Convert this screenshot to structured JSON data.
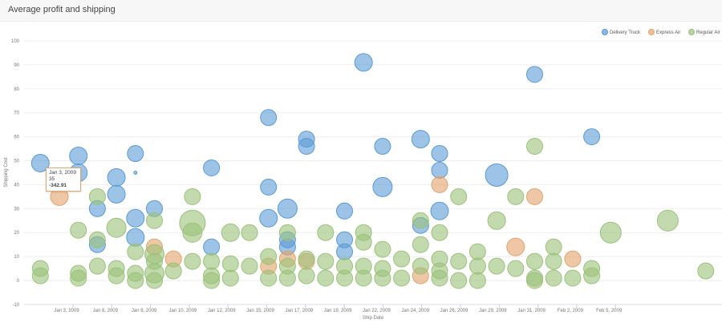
{
  "header": {
    "title": "Average profit and shipping"
  },
  "chart_data": {
    "type": "scatter",
    "subtype": "bubble",
    "title": "",
    "xlabel": "Ship Date",
    "ylabel": "Shipping Cost",
    "ylim": [
      -10,
      100
    ],
    "yticks": [
      -10,
      0,
      10,
      20,
      30,
      40,
      50,
      60,
      70,
      80,
      90,
      100
    ],
    "xticks": [
      "Jan 3, 2009",
      "Jan 6, 2009",
      "Jan 8, 2009",
      "Jan 10, 2009",
      "Jan 12, 2009",
      "Jan 15, 2009",
      "Jan 17, 2009",
      "Jan 19, 2009",
      "Jan 22, 2009",
      "Jan 24, 2009",
      "Jan 26, 2009",
      "Jan 29, 2009",
      "Jan 31, 2009",
      "Feb 2, 2009",
      "Feb 5, 2009"
    ],
    "grid": true,
    "legend_position": "top-right",
    "series": [
      {
        "name": "Delivery Truck",
        "color": "#5b9bd5",
        "points": [
          [
            "Jan 2",
            49,
            11
          ],
          [
            "Jan 4",
            52,
            11
          ],
          [
            "Jan 4",
            45,
            11
          ],
          [
            "Jan 5",
            30,
            10
          ],
          [
            "Jan 5",
            15,
            10
          ],
          [
            "Jan 6",
            43,
            11
          ],
          [
            "Jan 6",
            36,
            11
          ],
          [
            "Jan 7",
            53,
            10
          ],
          [
            "Jan 7",
            45,
            2
          ],
          [
            "Jan 7",
            26,
            11
          ],
          [
            "Jan 7",
            18,
            11
          ],
          [
            "Jan 8",
            30,
            10
          ],
          [
            "Jan 11",
            47,
            10
          ],
          [
            "Jan 11",
            14,
            10
          ],
          [
            "Jan 14",
            68,
            10
          ],
          [
            "Jan 14",
            39,
            10
          ],
          [
            "Jan 14",
            26,
            11
          ],
          [
            "Jan 15",
            30,
            12
          ],
          [
            "Jan 15",
            17,
            10
          ],
          [
            "Jan 15",
            14,
            10
          ],
          [
            "Jan 16",
            59,
            10
          ],
          [
            "Jan 16",
            56,
            10
          ],
          [
            "Jan 18",
            29,
            10
          ],
          [
            "Jan 18",
            17,
            10
          ],
          [
            "Jan 18",
            12,
            10
          ],
          [
            "Jan 19",
            91,
            11
          ],
          [
            "Jan 20",
            56,
            10
          ],
          [
            "Jan 20",
            39,
            12
          ],
          [
            "Jan 22",
            59,
            11
          ],
          [
            "Jan 22",
            23,
            10
          ],
          [
            "Jan 23",
            53,
            10
          ],
          [
            "Jan 23",
            46,
            10
          ],
          [
            "Jan 23",
            29,
            11
          ],
          [
            "Jan 26",
            44,
            14
          ],
          [
            "Jan 28",
            86,
            10
          ],
          [
            "Jan 31",
            60,
            10
          ]
        ]
      },
      {
        "name": "Express Air",
        "color": "#e3a46b",
        "points": [
          [
            "Jan 3",
            35,
            11
          ],
          [
            "Jan 8",
            14,
            10
          ],
          [
            "Jan 9",
            9,
            10
          ],
          [
            "Jan 14",
            6,
            10
          ],
          [
            "Jan 15",
            9,
            10
          ],
          [
            "Jan 16",
            8,
            10
          ],
          [
            "Jan 22",
            2,
            10
          ],
          [
            "Jan 23",
            40,
            10
          ],
          [
            "Jan 27",
            14,
            11
          ],
          [
            "Jan 28",
            35,
            10
          ],
          [
            "Jan 30",
            9,
            10
          ]
        ]
      },
      {
        "name": "Regular Air",
        "color": "#9bc27a",
        "points": [
          [
            "Jan 2",
            5,
            10
          ],
          [
            "Jan 2",
            2,
            10
          ],
          [
            "Jan 4",
            21,
            10
          ],
          [
            "Jan 4",
            3,
            10
          ],
          [
            "Jan 4",
            1,
            10
          ],
          [
            "Jan 5",
            35,
            10
          ],
          [
            "Jan 5",
            17,
            10
          ],
          [
            "Jan 5",
            6,
            10
          ],
          [
            "Jan 6",
            22,
            12
          ],
          [
            "Jan 6",
            5,
            10
          ],
          [
            "Jan 6",
            2,
            10
          ],
          [
            "Jan 7",
            12,
            10
          ],
          [
            "Jan 7",
            3,
            10
          ],
          [
            "Jan 7",
            0,
            10
          ],
          [
            "Jan 8",
            25,
            10
          ],
          [
            "Jan 8",
            11,
            12
          ],
          [
            "Jan 8",
            8,
            10
          ],
          [
            "Jan 8",
            3,
            12
          ],
          [
            "Jan 8",
            0,
            10
          ],
          [
            "Jan 9",
            4,
            10
          ],
          [
            "Jan 10",
            35,
            10
          ],
          [
            "Jan 10",
            24,
            16
          ],
          [
            "Jan 10",
            20,
            12
          ],
          [
            "Jan 10",
            8,
            10
          ],
          [
            "Jan 11",
            8,
            10
          ],
          [
            "Jan 11",
            2,
            10
          ],
          [
            "Jan 11",
            0,
            10
          ],
          [
            "Jan 12",
            20,
            11
          ],
          [
            "Jan 12",
            7,
            10
          ],
          [
            "Jan 12",
            1,
            10
          ],
          [
            "Jan 13",
            20,
            10
          ],
          [
            "Jan 13",
            6,
            10
          ],
          [
            "Jan 14",
            10,
            10
          ],
          [
            "Jan 14",
            1,
            10
          ],
          [
            "Jan 15",
            20,
            10
          ],
          [
            "Jan 15",
            6,
            10
          ],
          [
            "Jan 15",
            1,
            10
          ],
          [
            "Jan 16",
            2,
            10
          ],
          [
            "Jan 16",
            9,
            10
          ],
          [
            "Jan 17",
            20,
            10
          ],
          [
            "Jan 17",
            8,
            10
          ],
          [
            "Jan 17",
            1,
            10
          ],
          [
            "Jan 18",
            6,
            10
          ],
          [
            "Jan 18",
            1,
            10
          ],
          [
            "Jan 19",
            20,
            10
          ],
          [
            "Jan 19",
            16,
            10
          ],
          [
            "Jan 19",
            6,
            10
          ],
          [
            "Jan 19",
            1,
            10
          ],
          [
            "Jan 20",
            13,
            10
          ],
          [
            "Jan 20",
            5,
            10
          ],
          [
            "Jan 20",
            1,
            10
          ],
          [
            "Jan 21",
            9,
            10
          ],
          [
            "Jan 21",
            1,
            10
          ],
          [
            "Jan 22",
            25,
            10
          ],
          [
            "Jan 22",
            15,
            10
          ],
          [
            "Jan 22",
            6,
            10
          ],
          [
            "Jan 23",
            20,
            10
          ],
          [
            "Jan 23",
            9,
            10
          ],
          [
            "Jan 23",
            4,
            10
          ],
          [
            "Jan 23",
            1,
            10
          ],
          [
            "Jan 24",
            35,
            10
          ],
          [
            "Jan 24",
            8,
            10
          ],
          [
            "Jan 24",
            0,
            10
          ],
          [
            "Jan 25",
            12,
            10
          ],
          [
            "Jan 25",
            6,
            10
          ],
          [
            "Jan 25",
            0,
            10
          ],
          [
            "Jan 26",
            25,
            11
          ],
          [
            "Jan 26",
            6,
            10
          ],
          [
            "Jan 27",
            35,
            10
          ],
          [
            "Jan 27",
            5,
            10
          ],
          [
            "Jan 28",
            56,
            10
          ],
          [
            "Jan 28",
            8,
            10
          ],
          [
            "Jan 28",
            1,
            10
          ],
          [
            "Jan 28",
            0,
            10
          ],
          [
            "Jan 29",
            14,
            10
          ],
          [
            "Jan 29",
            8,
            10
          ],
          [
            "Jan 29",
            1,
            10
          ],
          [
            "Jan 30",
            1,
            10
          ],
          [
            "Jan 31",
            5,
            10
          ],
          [
            "Jan 31",
            2,
            10
          ],
          [
            "Feb 1",
            20,
            13
          ],
          [
            "Feb 4",
            25,
            13
          ],
          [
            "Feb 6",
            4,
            10
          ]
        ]
      }
    ],
    "tooltip": {
      "date": "Jan 3, 2009",
      "value": "35",
      "profit": "-342.91"
    }
  }
}
